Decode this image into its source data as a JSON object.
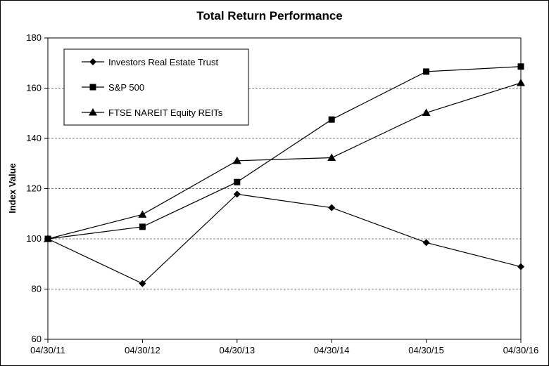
{
  "chart_data": {
    "type": "line",
    "title": "Total Return Performance",
    "xlabel": "",
    "ylabel": "Index Value",
    "categories": [
      "04/30/11",
      "04/30/12",
      "04/30/13",
      "04/30/14",
      "04/30/15",
      "04/30/16"
    ],
    "ylim": [
      60,
      180
    ],
    "yticks": [
      60,
      80,
      100,
      120,
      140,
      160,
      180
    ],
    "grid": true,
    "legend_position": "top-left",
    "series": [
      {
        "name": "Investors Real Estate Trust",
        "marker": "diamond",
        "values": [
          100,
          82.2,
          117.8,
          112.4,
          98.5,
          88.9
        ]
      },
      {
        "name": "S&P 500",
        "marker": "square",
        "values": [
          100,
          104.8,
          122.6,
          147.5,
          166.6,
          168.6
        ]
      },
      {
        "name": "FTSE NAREIT Equity REITs",
        "marker": "triangle",
        "values": [
          100,
          109.7,
          131.1,
          132.3,
          150.2,
          162.1
        ]
      }
    ],
    "colors": {
      "line": "#000000",
      "grid": "#808080",
      "background": "#ffffff"
    }
  }
}
